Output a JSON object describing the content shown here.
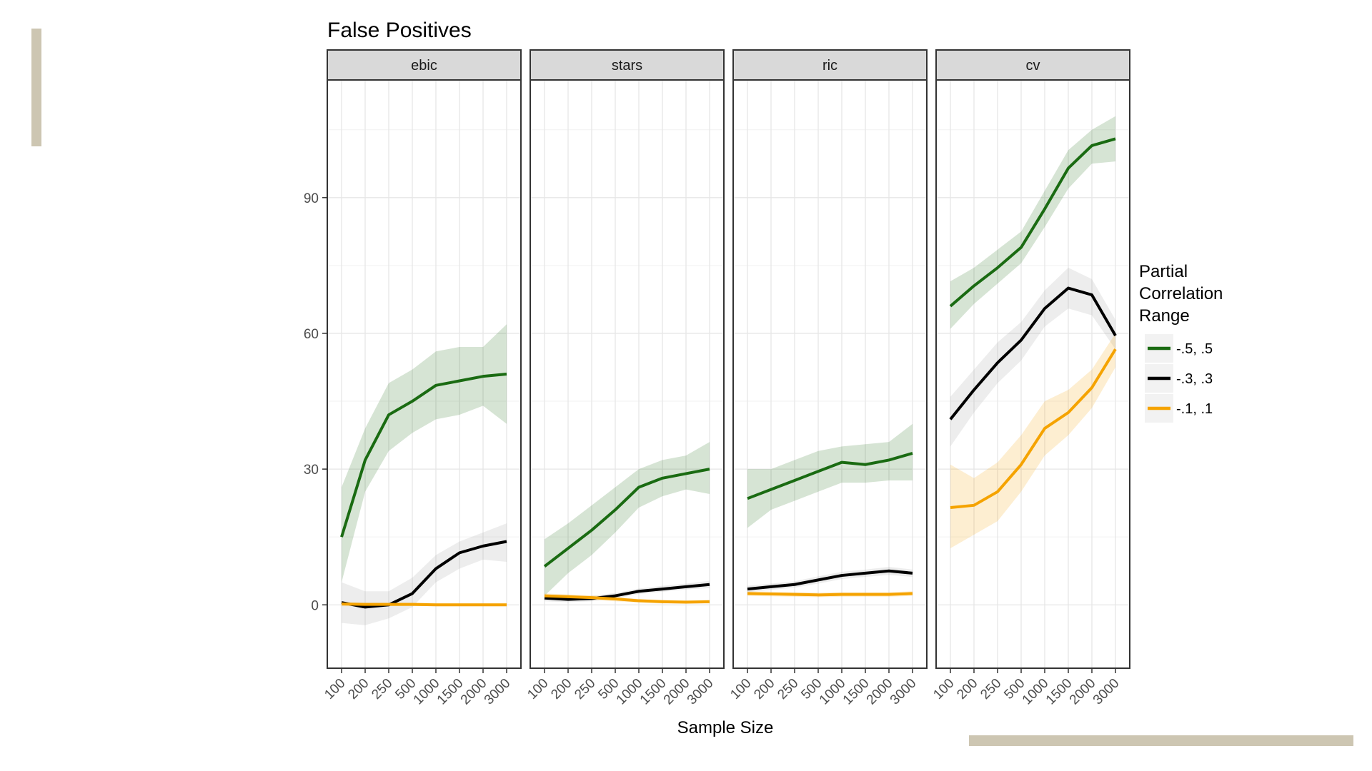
{
  "colors": {
    "series_1": "#1a6b12",
    "series_2": "#000000",
    "series_3": "#f5a300",
    "accent": "#cdc6b2"
  },
  "chart_data": {
    "type": "line",
    "title": "False Positives",
    "xlabel": "Sample Size",
    "ylabel": "",
    "ylim": [
      -14,
      116
    ],
    "yticks": [
      0,
      30,
      60,
      90
    ],
    "categories": [
      "100",
      "200",
      "250",
      "500",
      "1000",
      "1500",
      "2000",
      "3000"
    ],
    "legend": {
      "title_lines": [
        "Partial",
        "Correlation",
        "Range"
      ],
      "position": "right"
    },
    "panels": [
      {
        "label": "ebic",
        "series": [
          {
            "name": "-.5, .5",
            "color": "#1a6b12",
            "values": [
              15,
              32,
              42,
              45,
              48.5,
              49.5,
              50.5,
              51
            ],
            "lower": [
              5,
              25,
              34,
              38,
              41,
              42,
              44,
              40
            ],
            "upper": [
              26,
              39,
              49,
              52,
              56,
              57,
              57,
              62
            ]
          },
          {
            "name": "-.3, .3",
            "color": "#000000",
            "values": [
              0.5,
              -0.5,
              0,
              2.5,
              8,
              11.5,
              13,
              14
            ],
            "lower": [
              -4,
              -4.5,
              -3,
              -0.5,
              5,
              8,
              10,
              9.5
            ],
            "upper": [
              5,
              3,
              3,
              6,
              11,
              14,
              16,
              18
            ]
          },
          {
            "name": "-.1, .1",
            "color": "#f5a300",
            "values": [
              0.2,
              0.1,
              0.1,
              0.1,
              0,
              0,
              0,
              0
            ],
            "lower": [
              -0.3,
              -0.3,
              -0.3,
              -0.3,
              -0.3,
              -0.3,
              -0.3,
              -0.3
            ],
            "upper": [
              0.6,
              0.5,
              0.5,
              0.5,
              0.4,
              0.4,
              0.4,
              0.4
            ]
          }
        ]
      },
      {
        "label": "stars",
        "series": [
          {
            "name": "-.5, .5",
            "color": "#1a6b12",
            "values": [
              8.5,
              12.5,
              16.5,
              21,
              26,
              28,
              29,
              30
            ],
            "lower": [
              2,
              7,
              11,
              16,
              21.5,
              24,
              25.5,
              24.5
            ],
            "upper": [
              14.5,
              18,
              22,
              26,
              30,
              32,
              33,
              36
            ]
          },
          {
            "name": "-.3, .3",
            "color": "#000000",
            "values": [
              1.5,
              1.2,
              1.4,
              2,
              3,
              3.5,
              4,
              4.5
            ],
            "lower": [
              0.8,
              0.6,
              0.8,
              1.4,
              2.4,
              2.9,
              3.4,
              3.7
            ],
            "upper": [
              2.2,
              1.8,
              2,
              2.6,
              3.6,
              4.2,
              4.7,
              5.3
            ]
          },
          {
            "name": "-.1, .1",
            "color": "#f5a300",
            "values": [
              2,
              1.8,
              1.6,
              1.3,
              0.9,
              0.7,
              0.6,
              0.7
            ],
            "lower": [
              1.5,
              1.3,
              1.1,
              0.8,
              0.5,
              0.3,
              0.3,
              0.3
            ],
            "upper": [
              2.5,
              2.3,
              2.1,
              1.8,
              1.3,
              1.1,
              1,
              1.1
            ]
          }
        ]
      },
      {
        "label": "ric",
        "series": [
          {
            "name": "-.5, .5",
            "color": "#1a6b12",
            "values": [
              23.5,
              25.5,
              27.5,
              29.5,
              31.5,
              31,
              32,
              33.5
            ],
            "lower": [
              17,
              21,
              23,
              25,
              27,
              27,
              27.5,
              27.5
            ],
            "upper": [
              30,
              30,
              32,
              34,
              35,
              35.5,
              36,
              40
            ]
          },
          {
            "name": "-.3, .3",
            "color": "#000000",
            "values": [
              3.5,
              4,
              4.5,
              5.5,
              6.5,
              7,
              7.5,
              7
            ],
            "lower": [
              2.8,
              3.3,
              3.8,
              4.7,
              5.7,
              6.2,
              6.6,
              6.2
            ],
            "upper": [
              4.2,
              4.7,
              5.2,
              6.3,
              7.3,
              7.8,
              8.4,
              7.8
            ]
          },
          {
            "name": "-.1, .1",
            "color": "#f5a300",
            "values": [
              2.5,
              2.4,
              2.3,
              2.2,
              2.3,
              2.3,
              2.3,
              2.5
            ],
            "lower": [
              2,
              1.9,
              1.8,
              1.7,
              1.8,
              1.8,
              1.8,
              2
            ],
            "upper": [
              3,
              2.9,
              2.8,
              2.7,
              2.8,
              2.8,
              2.8,
              3
            ]
          }
        ]
      },
      {
        "label": "cv",
        "series": [
          {
            "name": "-.5, .5",
            "color": "#1a6b12",
            "values": [
              66,
              70.5,
              74.5,
              79,
              87.5,
              96.5,
              101.5,
              103
            ],
            "lower": [
              61,
              66.5,
              71,
              75.5,
              83.5,
              92,
              97.5,
              98
            ],
            "upper": [
              71.5,
              74.5,
              78.5,
              82.5,
              91.5,
              100.5,
              105,
              108
            ]
          },
          {
            "name": "-.3, .3",
            "color": "#000000",
            "values": [
              41,
              47.5,
              53.5,
              58.5,
              65.5,
              70,
              68.5,
              59.5
            ],
            "lower": [
              35,
              42.5,
              49,
              54,
              61.5,
              65.5,
              64,
              56.5
            ],
            "upper": [
              46,
              52,
              58,
              62.5,
              69.5,
              74.5,
              72,
              63
            ]
          },
          {
            "name": "-.1, .1",
            "color": "#f5a300",
            "values": [
              21.5,
              22,
              25,
              31,
              39,
              42.5,
              48,
              56.5
            ],
            "lower": [
              12.5,
              15.5,
              18.5,
              25,
              33,
              37.5,
              43.5,
              52.5
            ],
            "upper": [
              31,
              28,
              31.5,
              37.5,
              45,
              47.5,
              52,
              60
            ]
          }
        ]
      }
    ]
  }
}
